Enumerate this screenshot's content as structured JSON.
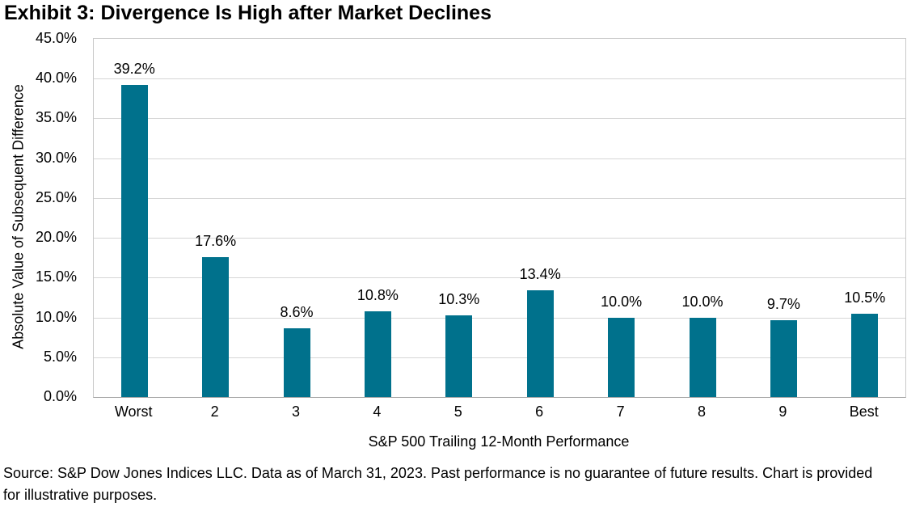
{
  "page": {
    "title": "Exhibit 3: Divergence Is High after Market Declines"
  },
  "chart_data": {
    "type": "bar",
    "title": "Exhibit 3: Divergence Is High after Market Declines",
    "xlabel": "S&P 500 Trailing 12-Month Performance",
    "ylabel": "Absolute Value of Subsequent Difference",
    "categories": [
      "Worst",
      "2",
      "3",
      "4",
      "5",
      "6",
      "7",
      "8",
      "9",
      "Best"
    ],
    "values": [
      39.2,
      17.6,
      8.6,
      10.8,
      10.3,
      13.4,
      10.0,
      10.0,
      9.7,
      10.5
    ],
    "value_labels": [
      "39.2%",
      "17.6%",
      "8.6%",
      "10.8%",
      "10.3%",
      "13.4%",
      "10.0%",
      "10.0%",
      "9.7%",
      "10.5%"
    ],
    "ylim": [
      0,
      45
    ],
    "ytick_step": 5,
    "ytick_labels_top_to_bottom": [
      "45.0%",
      "40.0%",
      "35.0%",
      "30.0%",
      "25.0%",
      "20.0%",
      "15.0%",
      "10.0%",
      "5.0%",
      "0.0%"
    ],
    "grid": true,
    "legend": null,
    "colors": {
      "bar": "#00718C",
      "gridline": "#D6D6D6",
      "plot_border": "#C9C9C9",
      "axis_line": "#A6A6A6",
      "text": "#000000"
    }
  },
  "footer": {
    "text": "Source: S&P Dow Jones Indices LLC. Data as of March 31, 2023. Past performance is no guarantee of future results. Chart is provided for illustrative purposes."
  }
}
